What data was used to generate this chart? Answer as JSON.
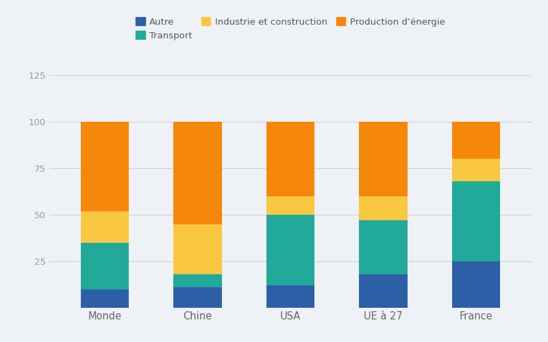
{
  "categories": [
    "Monde",
    "Chine",
    "USA",
    "UE à 27",
    "France"
  ],
  "segments": {
    "Autre": [
      10,
      11,
      12,
      18,
      25
    ],
    "Transport": [
      25,
      7,
      38,
      29,
      43
    ],
    "Industrie et construction": [
      17,
      27,
      10,
      13,
      12
    ],
    "Production d’énergie": [
      48,
      55,
      40,
      40,
      20
    ]
  },
  "colors": {
    "Autre": "#2d5fa6",
    "Transport": "#21a99a",
    "Industrie et construction": "#f9c840",
    "Production d’énergie": "#f5870a"
  },
  "legend_order": [
    "Autre",
    "Transport",
    "Industrie et construction",
    "Production d’énergie"
  ],
  "ylim": [
    0,
    125
  ],
  "yticks": [
    0,
    25,
    50,
    75,
    100,
    125
  ],
  "background_color": "#eef1f5",
  "bar_width": 0.52,
  "figsize": [
    8.0,
    5.0
  ],
  "dpi": 100
}
